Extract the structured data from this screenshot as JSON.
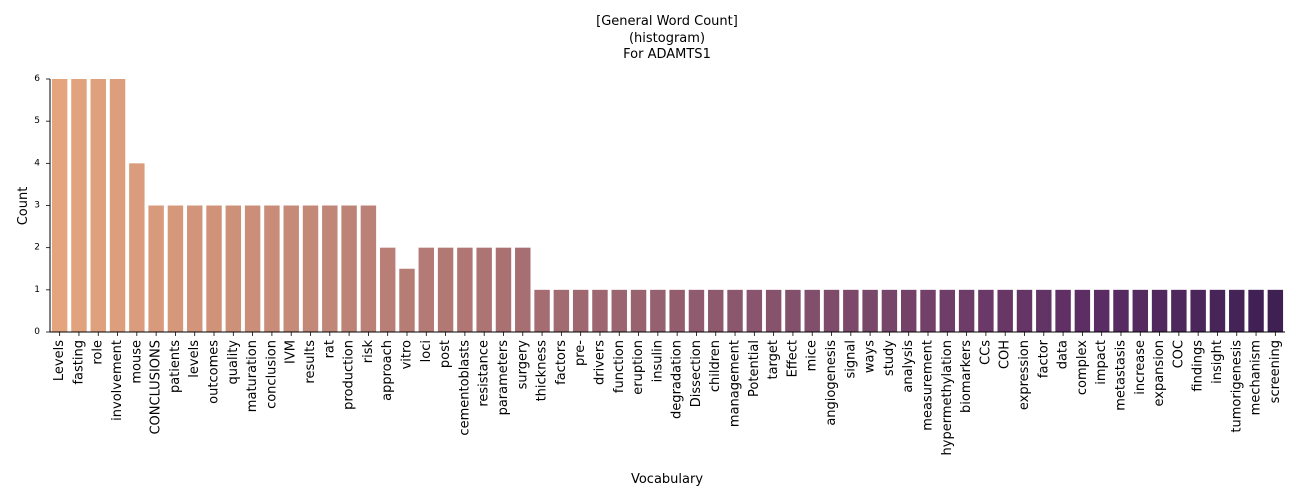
{
  "chart_data": {
    "type": "bar",
    "title_lines": [
      "[General Word Count]",
      "(histogram)",
      "For ADAMTS1"
    ],
    "xlabel": "Vocabulary",
    "ylabel": "Count",
    "ylim": [
      0,
      6
    ],
    "yticks": [
      0,
      1,
      2,
      3,
      4,
      5,
      6
    ],
    "grid": false,
    "palette": [
      "#e4a57e",
      "#5c2d64",
      "#3e2053"
    ],
    "categories": [
      "Levels",
      "fasting",
      "role",
      "involvement",
      "mouse",
      "CONCLUSIONS",
      "patients",
      "levels",
      "outcomes",
      "quality",
      "maturation",
      "conclusion",
      "IVM",
      "results",
      "rat",
      "production",
      "risk",
      "approach",
      "vitro",
      "loci",
      "post",
      "cementoblasts",
      "resistance",
      "parameters",
      "surgery",
      "thickness",
      "factors",
      "pre-",
      "drivers",
      "function",
      "eruption",
      "insulin",
      "degradation",
      "Dissection",
      "children",
      "management",
      "Potential",
      "target",
      "Effect",
      "mice",
      "angiogenesis",
      "signal",
      "ways",
      "study",
      "analysis",
      "measurement",
      "hypermethylation",
      "biomarkers",
      "CCs",
      "COH",
      "expression",
      "factor",
      "data",
      "complex",
      "impact",
      "metastasis",
      "increase",
      "expansion",
      "COC",
      "findings",
      "insight",
      "tumorigenesis",
      "mechanism",
      "screening"
    ],
    "values": [
      6,
      6,
      6,
      6,
      4,
      3,
      3,
      3,
      3,
      3,
      3,
      3,
      3,
      3,
      3,
      3,
      3,
      2,
      1.5,
      2,
      2,
      2,
      2,
      2,
      2,
      1,
      1,
      1,
      1,
      1,
      1,
      1,
      1,
      1,
      1,
      1,
      1,
      1,
      1,
      1,
      1,
      1,
      1,
      1,
      1,
      1,
      1,
      1,
      1,
      1,
      1,
      1,
      1,
      1,
      1,
      1,
      1,
      1,
      1,
      1,
      1,
      1,
      1,
      1
    ]
  }
}
